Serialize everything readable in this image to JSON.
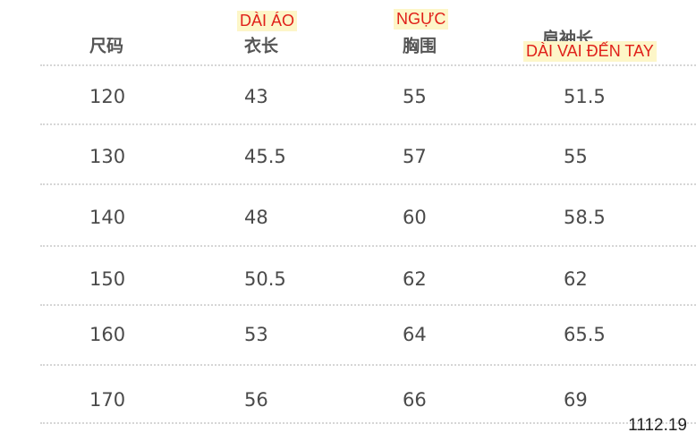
{
  "table": {
    "header": [
      "尺码",
      "衣长",
      "胸围",
      "肩袖长"
    ],
    "rows": [
      [
        "120",
        "43",
        "55",
        "51.5"
      ],
      [
        "130",
        "45.5",
        "57",
        "55"
      ],
      [
        "140",
        "48",
        "60",
        "58.5"
      ],
      [
        "150",
        "50.5",
        "62",
        "62"
      ],
      [
        "160",
        "53",
        "64",
        "65.5"
      ],
      [
        "170",
        "56",
        "66",
        "69"
      ]
    ]
  },
  "annotations": [
    "DÀI ÁO",
    "NGỰC",
    "DÀI VAI ĐẾN TAY"
  ],
  "footer": "1112.19"
}
